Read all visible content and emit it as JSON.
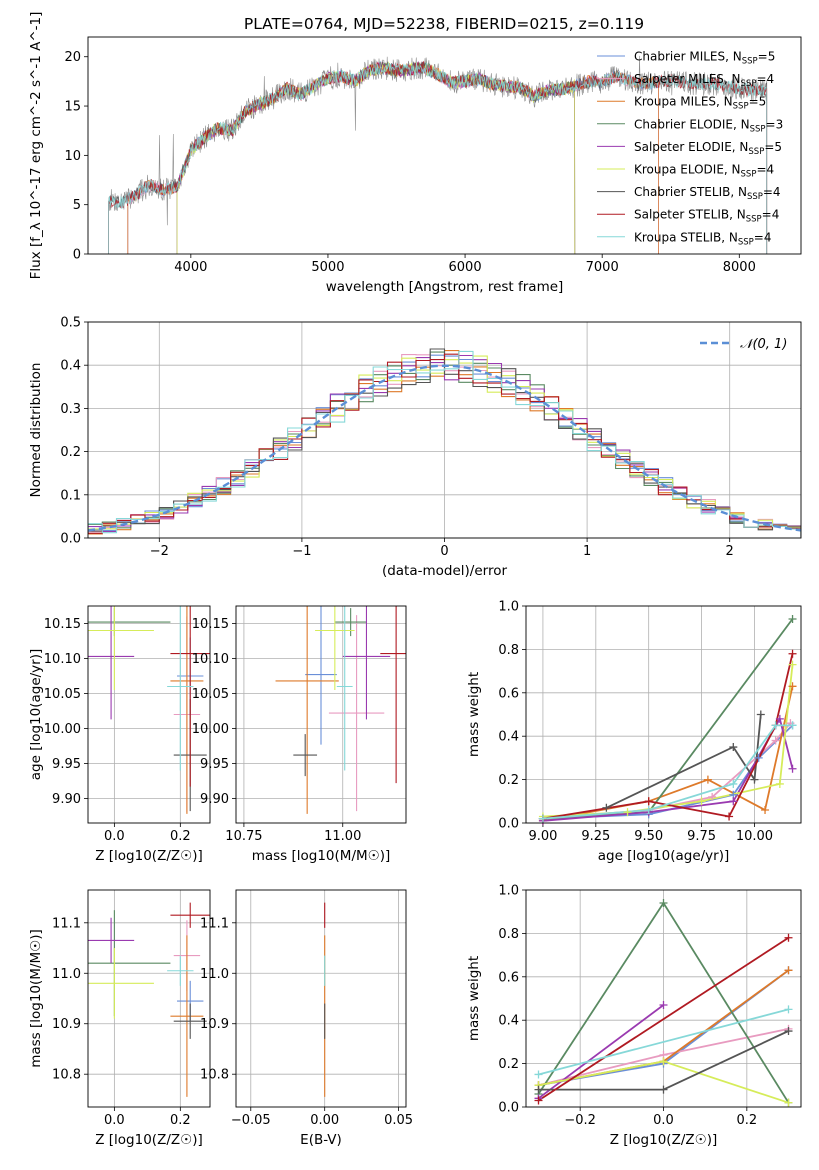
{
  "figure_title": "PLATE=0764, MJD=52238, FIBERID=0215, z=0.119",
  "colors": {
    "Chabrier MILES": "#6a8fd8",
    "Salpeter MILES": "#e89bc0",
    "Kroupa MILES": "#de7a2a",
    "Chabrier ELODIE": "#5a8a62",
    "Salpeter ELODIE": "#9a3ab0",
    "Kroupa ELODIE": "#d6ec5a",
    "Chabrier STELIB": "#555555",
    "Salpeter STELIB": "#b01a22",
    "Kroupa STELIB": "#86d8d8",
    "normal_curve": "#5b8fd6"
  },
  "chart_data": [
    {
      "id": "spectrum",
      "type": "line",
      "title": "PLATE=0764, MJD=52238, FIBERID=0215, z=0.119",
      "xlabel": "wavelength [Angstrom, rest frame]",
      "ylabel": "Flux [f_λ 10^-17 erg cm^-2 s^-1 A^-1]",
      "xlim": [
        3250,
        8450
      ],
      "ylim": [
        0,
        22
      ],
      "xticks": [
        4000,
        5000,
        6000,
        7000,
        8000
      ],
      "yticks": [
        0,
        5,
        10,
        15,
        20
      ],
      "grid": false,
      "legend_position": "top-right",
      "legend": [
        {
          "series": "Chabrier MILES",
          "label": "Chabrier MILES, N",
          "sub": "SSP",
          "tail": "=5"
        },
        {
          "series": "Salpeter MILES",
          "label": "Salpeter MILES, N",
          "sub": "SSP",
          "tail": "=4"
        },
        {
          "series": "Kroupa MILES",
          "label": "Kroupa MILES, N",
          "sub": "SSP",
          "tail": "=5"
        },
        {
          "series": "Chabrier ELODIE",
          "label": "Chabrier ELODIE, N",
          "sub": "SSP",
          "tail": "=3"
        },
        {
          "series": "Salpeter ELODIE",
          "label": "Salpeter ELODIE, N",
          "sub": "SSP",
          "tail": "=5"
        },
        {
          "series": "Kroupa ELODIE",
          "label": "Kroupa ELODIE, N",
          "sub": "SSP",
          "tail": "=4"
        },
        {
          "series": "Chabrier STELIB",
          "label": "Chabrier STELIB, N",
          "sub": "SSP",
          "tail": "=4"
        },
        {
          "series": "Salpeter STELIB",
          "label": "Salpeter STELIB, N",
          "sub": "SSP",
          "tail": "=4"
        },
        {
          "series": "Kroupa STELIB",
          "label": "Kroupa STELIB, N",
          "sub": "SSP",
          "tail": "=4"
        }
      ],
      "continuum": {
        "x": [
          3400,
          3500,
          3600,
          3700,
          3800,
          3900,
          4000,
          4100,
          4200,
          4300,
          4400,
          4500,
          4600,
          4700,
          4800,
          4900,
          5000,
          5100,
          5200,
          5300,
          5400,
          5500,
          5600,
          5700,
          5800,
          5900,
          6000,
          6100,
          6200,
          6300,
          6400,
          6500,
          6600,
          6700,
          6800,
          6900,
          7000,
          7100,
          7200,
          7300,
          7400,
          7500,
          7600,
          7700,
          7800,
          7900,
          8000,
          8100,
          8200
        ],
        "y": [
          5.5,
          5.2,
          6.0,
          7.0,
          6.5,
          6.8,
          10.5,
          11.8,
          12.8,
          12.5,
          14.5,
          15.2,
          15.8,
          16.8,
          16.2,
          17.0,
          17.8,
          18.0,
          17.6,
          18.6,
          18.9,
          18.6,
          18.7,
          18.9,
          18.2,
          17.4,
          17.5,
          17.8,
          17.2,
          17.0,
          16.9,
          16.0,
          16.6,
          16.7,
          17.0,
          17.5,
          17.4,
          18.0,
          17.6,
          17.2,
          17.4,
          17.6,
          17.4,
          17.2,
          17.3,
          17.0,
          16.8,
          16.6,
          16.7
        ]
      },
      "model_ranges": {
        "Chabrier MILES": [
          3540,
          7410
        ],
        "Salpeter MILES": [
          3540,
          7410
        ],
        "Kroupa MILES": [
          3540,
          7410
        ],
        "Chabrier ELODIE": [
          3900,
          6800
        ],
        "Salpeter ELODIE": [
          3900,
          6800
        ],
        "Kroupa ELODIE": [
          3900,
          6800
        ],
        "Chabrier STELIB": [
          3400,
          8200
        ],
        "Salpeter STELIB": [
          3400,
          8200
        ],
        "Kroupa STELIB": [
          3400,
          8200
        ]
      }
    },
    {
      "id": "residuals",
      "type": "histogram",
      "xlabel": "(data-model)/error",
      "ylabel": "Normed distribution",
      "xlim": [
        -2.5,
        2.5
      ],
      "ylim": [
        0,
        0.5
      ],
      "xticks": [
        -2,
        -1,
        0,
        1,
        2
      ],
      "yticks": [
        0.0,
        0.1,
        0.2,
        0.3,
        0.4,
        0.5
      ],
      "grid": true,
      "legend_position": "top-right",
      "legend": [
        {
          "label": "𝒩(0, 1)",
          "style": "dashed"
        }
      ],
      "bin_width": 0.1,
      "series": [
        "Chabrier MILES",
        "Salpeter MILES",
        "Kroupa MILES",
        "Chabrier ELODIE",
        "Salpeter ELODIE",
        "Kroupa ELODIE",
        "Chabrier STELIB",
        "Salpeter STELIB",
        "Kroupa STELIB"
      ]
    },
    {
      "id": "age_vs_Z",
      "type": "errorbar",
      "xlabel": "Z [log10(Z/Z☉)]",
      "ylabel": "age  [log10(age/yr)]",
      "xlim": [
        -0.08,
        0.29
      ],
      "ylim": [
        9.865,
        10.175
      ],
      "xticks": [
        0.0,
        0.2
      ],
      "yticks": [
        9.9,
        9.95,
        10.0,
        10.05,
        10.1,
        10.15
      ],
      "grid": true,
      "points": [
        {
          "series": "Chabrier MILES",
          "x": 0.23,
          "y": 10.075,
          "xerr": 0.04,
          "yerr": 0.055
        },
        {
          "series": "Salpeter MILES",
          "x": 0.22,
          "y": 10.02,
          "xerr": 0.04,
          "yerr": 0.14
        },
        {
          "series": "Kroupa MILES",
          "x": 0.22,
          "y": 10.068,
          "xerr": 0.05,
          "yerr": 0.19
        },
        {
          "series": "Chabrier ELODIE",
          "x": 0.0,
          "y": 10.152,
          "xerr": 0.17,
          "yerr": 0.02
        },
        {
          "series": "Salpeter ELODIE",
          "x": -0.01,
          "y": 10.103,
          "xerr": 0.07,
          "yerr": 0.09
        },
        {
          "series": "Kroupa ELODIE",
          "x": 0.0,
          "y": 10.14,
          "xerr": 0.12,
          "yerr": 0.085
        },
        {
          "series": "Chabrier STELIB",
          "x": 0.23,
          "y": 9.962,
          "xerr": 0.05,
          "yerr": 0.08
        },
        {
          "series": "Salpeter STELIB",
          "x": 0.23,
          "y": 10.107,
          "xerr": 0.06,
          "yerr": 0.19
        },
        {
          "series": "Kroupa STELIB",
          "x": 0.2,
          "y": 10.06,
          "xerr": 0.04,
          "yerr": 0.12
        }
      ]
    },
    {
      "id": "age_vs_mass",
      "type": "errorbar",
      "xlabel": "mass [log10(M/M☉)]",
      "ylabel": "",
      "xlim": [
        10.73,
        11.16
      ],
      "ylim": [
        9.865,
        10.175
      ],
      "xticks": [
        10.75,
        11.0
      ],
      "yticks": [
        9.9,
        9.95,
        10.0,
        10.05,
        10.1,
        10.15
      ],
      "grid": true,
      "points": [
        {
          "series": "Chabrier MILES",
          "x": 10.945,
          "y": 10.077,
          "xerr": 0.04,
          "yerr": 0.1
        },
        {
          "series": "Salpeter MILES",
          "x": 11.035,
          "y": 10.022,
          "xerr": 0.07,
          "yerr": 0.14
        },
        {
          "series": "Kroupa MILES",
          "x": 10.91,
          "y": 10.068,
          "xerr": 0.08,
          "yerr": 0.19
        },
        {
          "series": "Chabrier ELODIE",
          "x": 11.02,
          "y": 10.152,
          "xerr": 0.04,
          "yerr": 0.02
        },
        {
          "series": "Salpeter ELODIE",
          "x": 11.06,
          "y": 10.103,
          "xerr": 0.06,
          "yerr": 0.09
        },
        {
          "series": "Kroupa ELODIE",
          "x": 10.98,
          "y": 10.14,
          "xerr": 0.05,
          "yerr": 0.085
        },
        {
          "series": "Chabrier STELIB",
          "x": 10.905,
          "y": 9.962,
          "xerr": 0.03,
          "yerr": 0.03
        },
        {
          "series": "Salpeter STELIB",
          "x": 11.135,
          "y": 10.107,
          "xerr": 0.04,
          "yerr": 0.185
        },
        {
          "series": "Kroupa STELIB",
          "x": 11.005,
          "y": 10.06,
          "xerr": 0.02,
          "yerr": 0.12
        }
      ]
    },
    {
      "id": "weight_vs_age",
      "type": "line",
      "xlabel": "age  [log10(age/yr)]",
      "ylabel": "mass weight",
      "xlim": [
        8.92,
        10.22
      ],
      "ylim": [
        0.0,
        1.0
      ],
      "xticks": [
        9.0,
        9.25,
        9.5,
        9.75,
        10.0
      ],
      "yticks": [
        0.0,
        0.2,
        0.4,
        0.6,
        0.8,
        1.0
      ],
      "grid": true,
      "marker": "+",
      "series": [
        {
          "name": "Chabrier MILES",
          "x": [
            9.0,
            9.5,
            9.9,
            10.02,
            10.18
          ],
          "y": [
            0.02,
            0.04,
            0.13,
            0.3,
            0.45
          ]
        },
        {
          "name": "Salpeter MILES",
          "x": [
            9.0,
            9.5,
            9.8,
            10.1,
            10.17
          ],
          "y": [
            0.02,
            0.06,
            0.12,
            0.38,
            0.46
          ]
        },
        {
          "name": "Kroupa MILES",
          "x": [
            9.0,
            9.5,
            9.78,
            10.05,
            10.18
          ],
          "y": [
            0.01,
            0.1,
            0.2,
            0.06,
            0.63
          ]
        },
        {
          "name": "Chabrier ELODIE",
          "x": [
            9.0,
            9.5,
            10.18
          ],
          "y": [
            0.02,
            0.05,
            0.94
          ]
        },
        {
          "name": "Salpeter ELODIE",
          "x": [
            9.0,
            9.5,
            9.9,
            10.12,
            10.18
          ],
          "y": [
            0.01,
            0.05,
            0.1,
            0.48,
            0.25
          ]
        },
        {
          "name": "Kroupa ELODIE",
          "x": [
            9.0,
            9.4,
            9.75,
            10.12,
            10.18
          ],
          "y": [
            0.03,
            0.05,
            0.1,
            0.18,
            0.73
          ]
        },
        {
          "name": "Chabrier STELIB",
          "x": [
            9.3,
            9.9,
            10.0,
            10.03
          ],
          "y": [
            0.07,
            0.35,
            0.2,
            0.5
          ]
        },
        {
          "name": "Salpeter STELIB",
          "x": [
            9.0,
            9.5,
            9.88,
            10.1,
            10.18
          ],
          "y": [
            0.02,
            0.1,
            0.03,
            0.45,
            0.78
          ]
        },
        {
          "name": "Kroupa STELIB",
          "x": [
            9.0,
            9.5,
            9.9,
            10.1,
            10.18
          ],
          "y": [
            0.02,
            0.06,
            0.18,
            0.45,
            0.45
          ]
        }
      ]
    },
    {
      "id": "mass_vs_Z",
      "type": "errorbar",
      "xlabel": "Z [log10(Z/Z☉)]",
      "ylabel": "mass [log10(M/M☉)]",
      "xlim": [
        -0.08,
        0.29
      ],
      "ylim": [
        10.735,
        11.165
      ],
      "xticks": [
        0.0,
        0.2
      ],
      "yticks": [
        10.8,
        10.9,
        11.0,
        11.1
      ],
      "grid": true,
      "points": [
        {
          "series": "Chabrier MILES",
          "x": 0.23,
          "y": 10.945,
          "xerr": 0.04,
          "yerr": 0.04
        },
        {
          "series": "Salpeter MILES",
          "x": 0.22,
          "y": 11.035,
          "xerr": 0.04,
          "yerr": 0.07
        },
        {
          "series": "Kroupa MILES",
          "x": 0.22,
          "y": 10.915,
          "xerr": 0.05,
          "yerr": 0.16
        },
        {
          "series": "Chabrier ELODIE",
          "x": 0.0,
          "y": 11.02,
          "xerr": 0.17,
          "yerr": 0.105
        },
        {
          "series": "Salpeter ELODIE",
          "x": -0.01,
          "y": 11.065,
          "xerr": 0.07,
          "yerr": 0.045
        },
        {
          "series": "Kroupa ELODIE",
          "x": 0.0,
          "y": 10.98,
          "xerr": 0.12,
          "yerr": 0.07
        },
        {
          "series": "Chabrier STELIB",
          "x": 0.23,
          "y": 10.905,
          "xerr": 0.05,
          "yerr": 0.035
        },
        {
          "series": "Salpeter STELIB",
          "x": 0.23,
          "y": 11.115,
          "xerr": 0.06,
          "yerr": 0.025
        },
        {
          "series": "Kroupa STELIB",
          "x": 0.2,
          "y": 11.005,
          "xerr": 0.04,
          "yerr": 0.03
        }
      ]
    },
    {
      "id": "mass_vs_ebv",
      "type": "errorbar",
      "xlabel": "E(B-V)",
      "ylabel": "",
      "xlim": [
        -0.06,
        0.055
      ],
      "ylim": [
        10.735,
        11.165
      ],
      "xticks": [
        -0.05,
        0.0,
        0.05
      ],
      "yticks": [
        10.8,
        10.9,
        11.0,
        11.1
      ],
      "grid": true,
      "points": [
        {
          "series": "Kroupa MILES",
          "x": 0.0,
          "y": 10.915,
          "xerr": 0.0,
          "yerr": 0.16
        },
        {
          "series": "Salpeter STELIB",
          "x": 0.0,
          "y": 11.115,
          "xerr": 0.0,
          "yerr": 0.025
        },
        {
          "series": "Kroupa STELIB",
          "x": 0.0,
          "y": 11.005,
          "xerr": 0.0,
          "yerr": 0.03
        },
        {
          "series": "Chabrier STELIB",
          "x": 0.0,
          "y": 10.905,
          "xerr": 0.0,
          "yerr": 0.035
        }
      ]
    },
    {
      "id": "weight_vs_Z",
      "type": "line",
      "xlabel": "Z [log10(Z/Z☉)]",
      "ylabel": "mass weight",
      "xlim": [
        -0.33,
        0.33
      ],
      "ylim": [
        0.0,
        1.0
      ],
      "xticks": [
        -0.2,
        0.0,
        0.2
      ],
      "yticks": [
        0.0,
        0.2,
        0.4,
        0.6,
        0.8,
        1.0
      ],
      "grid": true,
      "marker": "+",
      "series": [
        {
          "name": "Chabrier MILES",
          "x": [
            -0.3,
            0.0,
            0.3
          ],
          "y": [
            0.1,
            0.2,
            0.63
          ]
        },
        {
          "name": "Salpeter MILES",
          "x": [
            -0.3,
            0.0,
            0.3
          ],
          "y": [
            0.1,
            0.24,
            0.36
          ]
        },
        {
          "name": "Kroupa MILES",
          "x": [
            -0.3,
            0.0,
            0.3
          ],
          "y": [
            0.1,
            0.21,
            0.63
          ]
        },
        {
          "name": "Chabrier ELODIE",
          "x": [
            -0.3,
            0.0,
            0.3
          ],
          "y": [
            0.06,
            0.94,
            0.02
          ]
        },
        {
          "name": "Salpeter ELODIE",
          "x": [
            -0.3,
            0.0
          ],
          "y": [
            0.04,
            0.47
          ]
        },
        {
          "name": "Kroupa ELODIE",
          "x": [
            -0.3,
            0.0,
            0.3
          ],
          "y": [
            0.1,
            0.21,
            0.02
          ]
        },
        {
          "name": "Chabrier STELIB",
          "x": [
            -0.3,
            0.0,
            0.3
          ],
          "y": [
            0.08,
            0.08,
            0.35
          ]
        },
        {
          "name": "Salpeter STELIB",
          "x": [
            -0.3,
            0.3
          ],
          "y": [
            0.03,
            0.78
          ]
        },
        {
          "name": "Kroupa STELIB",
          "x": [
            -0.3,
            0.3
          ],
          "y": [
            0.15,
            0.45
          ]
        }
      ]
    }
  ]
}
